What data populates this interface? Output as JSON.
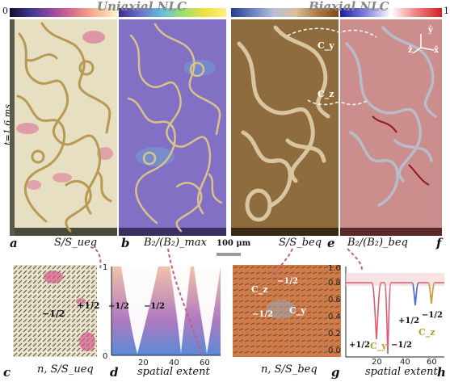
{
  "colorbars": {
    "min_label": "0",
    "max_label": "1"
  },
  "headers": {
    "uniaxial": "Uniaxial NLC",
    "biaxial": "Biaxial NLC"
  },
  "time_label": "t=1.6 ms",
  "scalebar_label": "100 μm",
  "panels": {
    "a": {
      "label": "a",
      "caption": "S/S_ueq"
    },
    "b": {
      "label": "b",
      "caption": "B₂/(B₂)_max"
    },
    "e": {
      "label": "e",
      "caption": "S/S_beq"
    },
    "f": {
      "label": "f",
      "caption": "B₂/(B₂)_beq"
    },
    "c": {
      "label": "c",
      "caption": "n, S/S_ueq"
    },
    "d": {
      "label": "d",
      "caption": "spatial extent"
    },
    "g": {
      "label": "g",
      "caption": "n, S/S_beq"
    },
    "h": {
      "label": "h",
      "caption": "spatial extent"
    }
  },
  "annotations": {
    "cy": "C_y",
    "cz": "C_z",
    "axes": {
      "y": "ŷ",
      "z": "ẑ",
      "x": "x̂"
    },
    "half_pos": "+1/2",
    "half_neg": "−1/2"
  },
  "colors": {
    "uniaxial_bg": "#ece4c8",
    "b_bg": "#8a76c8",
    "e_bg": "#8c6a3c",
    "f_bg": "#c98a8a",
    "tube": "#c2a76a",
    "defect_pink": "#d65a8c",
    "arrow_pink": "#c06080"
  },
  "chart_data": [
    {
      "type": "area",
      "panel": "d",
      "xlabel": "spatial extent",
      "ylabel": "",
      "xlim": [
        0,
        70
      ],
      "ylim": [
        0,
        1
      ],
      "xticks": [
        20,
        40,
        60
      ],
      "yticks": [
        0,
        1
      ],
      "minima_x": [
        7,
        27,
        36,
        52
      ]
    },
    {
      "type": "line",
      "panel": "h",
      "xlabel": "spatial extent",
      "ylabel": "",
      "xlim": [
        0,
        65
      ],
      "ylim": [
        0,
        1
      ],
      "xticks": [
        20,
        40,
        60
      ],
      "yticks": [
        0.0,
        0.2,
        0.4,
        0.6,
        0.8,
        1.0
      ],
      "minima_x": [
        20,
        28,
        47,
        57
      ],
      "minima_y": [
        0.12,
        0.02,
        0.6,
        0.62
      ]
    }
  ]
}
